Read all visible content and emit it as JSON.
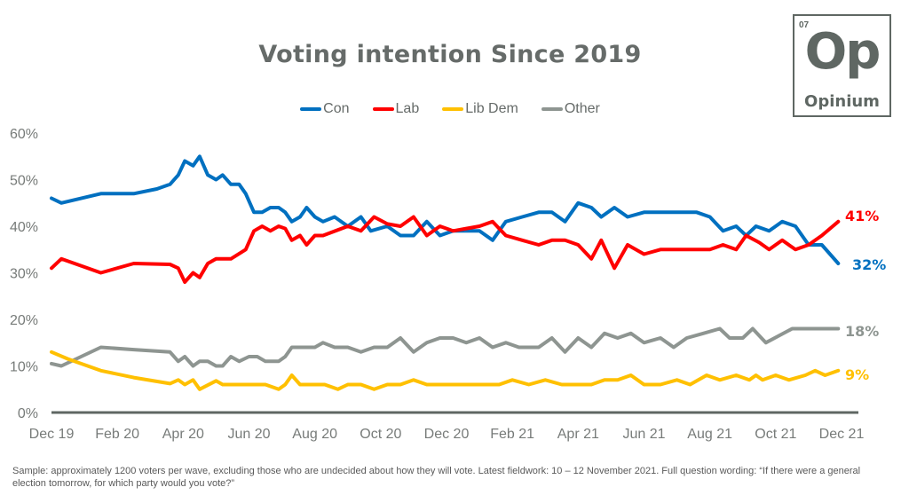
{
  "logo": {
    "number": "07",
    "symbol": "Op",
    "name": "Opinium"
  },
  "footnote": "Sample: approximately 1200 voters per wave, excluding those who are undecided about how they will vote. Latest fieldwork: 10 – 12 November 2021. Full question wording: “If there were a general election tomorrow, for which party would you vote?”",
  "chart_data": {
    "type": "line",
    "title": "Voting intention Since 2019",
    "xlabel": "",
    "ylabel": "",
    "ylim": [
      0,
      60
    ],
    "xlim": [
      0,
      24
    ],
    "x_unit": "months since Dec 2019",
    "yticks": [
      "0%",
      "10%",
      "20%",
      "30%",
      "40%",
      "50%",
      "60%"
    ],
    "ytick_values": [
      0,
      10,
      20,
      30,
      40,
      50,
      60
    ],
    "xticks": [
      "Dec 19",
      "Feb 20",
      "Apr 20",
      "Jun 20",
      "Aug 20",
      "Oct 20",
      "Dec 20",
      "Feb 21",
      "Apr 21",
      "Jun 21",
      "Aug 21",
      "Oct 21",
      "Dec 21"
    ],
    "xtick_values": [
      0,
      2,
      4,
      6,
      8,
      10,
      12,
      14,
      16,
      18,
      20,
      22,
      24
    ],
    "grid": false,
    "legend_position": "top-center",
    "series": [
      {
        "name": "Con",
        "color": "#0070c0",
        "end_label": "32%",
        "points": [
          [
            0,
            46
          ],
          [
            0.3,
            45
          ],
          [
            1.5,
            47
          ],
          [
            2.5,
            47
          ],
          [
            3.2,
            48
          ],
          [
            3.6,
            49
          ],
          [
            3.85,
            51
          ],
          [
            4.05,
            54
          ],
          [
            4.3,
            53
          ],
          [
            4.5,
            55
          ],
          [
            4.75,
            51
          ],
          [
            5.0,
            50
          ],
          [
            5.2,
            51
          ],
          [
            5.45,
            49
          ],
          [
            5.7,
            49
          ],
          [
            5.9,
            47
          ],
          [
            6.15,
            43
          ],
          [
            6.4,
            43
          ],
          [
            6.65,
            44
          ],
          [
            6.9,
            44
          ],
          [
            7.1,
            43
          ],
          [
            7.3,
            41
          ],
          [
            7.55,
            42
          ],
          [
            7.75,
            44
          ],
          [
            8.0,
            42
          ],
          [
            8.25,
            41
          ],
          [
            8.6,
            42
          ],
          [
            9.0,
            40
          ],
          [
            9.4,
            42
          ],
          [
            9.7,
            39
          ],
          [
            10.2,
            40
          ],
          [
            10.6,
            38
          ],
          [
            11.0,
            38
          ],
          [
            11.4,
            41
          ],
          [
            11.8,
            38
          ],
          [
            12.2,
            39
          ],
          [
            12.6,
            39
          ],
          [
            13.0,
            39
          ],
          [
            13.4,
            37
          ],
          [
            13.8,
            41
          ],
          [
            14.3,
            42
          ],
          [
            14.8,
            43
          ],
          [
            15.2,
            43
          ],
          [
            15.6,
            41
          ],
          [
            16.0,
            45
          ],
          [
            16.4,
            44
          ],
          [
            16.7,
            42
          ],
          [
            17.1,
            44
          ],
          [
            17.5,
            42
          ],
          [
            18.0,
            43
          ],
          [
            18.5,
            43
          ],
          [
            19.0,
            43
          ],
          [
            19.6,
            43
          ],
          [
            20.0,
            42
          ],
          [
            20.4,
            39
          ],
          [
            20.8,
            40
          ],
          [
            21.1,
            38
          ],
          [
            21.4,
            40
          ],
          [
            21.8,
            39
          ],
          [
            22.2,
            41
          ],
          [
            22.6,
            40
          ],
          [
            23.0,
            36
          ],
          [
            23.4,
            36
          ],
          [
            23.9,
            32
          ]
        ]
      },
      {
        "name": "Lab",
        "color": "#ff0000",
        "end_label": "41%",
        "points": [
          [
            0,
            31
          ],
          [
            0.3,
            33
          ],
          [
            1.5,
            30
          ],
          [
            2.5,
            32
          ],
          [
            3.6,
            31.8
          ],
          [
            3.85,
            31
          ],
          [
            4.05,
            28
          ],
          [
            4.3,
            30
          ],
          [
            4.5,
            29
          ],
          [
            4.75,
            32
          ],
          [
            5.0,
            33
          ],
          [
            5.45,
            33
          ],
          [
            5.9,
            35
          ],
          [
            6.15,
            39
          ],
          [
            6.4,
            40
          ],
          [
            6.65,
            39
          ],
          [
            6.9,
            40
          ],
          [
            7.1,
            39.5
          ],
          [
            7.3,
            37
          ],
          [
            7.55,
            38
          ],
          [
            7.75,
            36
          ],
          [
            8.0,
            38
          ],
          [
            8.25,
            38
          ],
          [
            9.0,
            40
          ],
          [
            9.4,
            39
          ],
          [
            9.8,
            42
          ],
          [
            10.2,
            40.5
          ],
          [
            10.6,
            40
          ],
          [
            11.0,
            42
          ],
          [
            11.4,
            38
          ],
          [
            11.8,
            40
          ],
          [
            12.2,
            39
          ],
          [
            12.6,
            39.5
          ],
          [
            13.0,
            40
          ],
          [
            13.4,
            41
          ],
          [
            13.8,
            38
          ],
          [
            14.3,
            37
          ],
          [
            14.8,
            36
          ],
          [
            15.2,
            37
          ],
          [
            15.6,
            37
          ],
          [
            16.0,
            36
          ],
          [
            16.4,
            33
          ],
          [
            16.7,
            37
          ],
          [
            17.1,
            31
          ],
          [
            17.5,
            36
          ],
          [
            18.0,
            34
          ],
          [
            18.5,
            35
          ],
          [
            19.6,
            35
          ],
          [
            20.0,
            35
          ],
          [
            20.4,
            36
          ],
          [
            20.8,
            35
          ],
          [
            21.1,
            38
          ],
          [
            21.5,
            36.5
          ],
          [
            21.8,
            35
          ],
          [
            22.2,
            37
          ],
          [
            22.6,
            35
          ],
          [
            23.0,
            36
          ],
          [
            23.4,
            38
          ],
          [
            23.9,
            41
          ]
        ]
      },
      {
        "name": "Lib Dem",
        "color": "#ffc000",
        "end_label": "9%",
        "points": [
          [
            0,
            13
          ],
          [
            0.5,
            11.5
          ],
          [
            1.5,
            9
          ],
          [
            2.5,
            7.5
          ],
          [
            3.6,
            6.2
          ],
          [
            3.85,
            7
          ],
          [
            4.05,
            6
          ],
          [
            4.3,
            7
          ],
          [
            4.5,
            5
          ],
          [
            5.0,
            6.8
          ],
          [
            5.2,
            6
          ],
          [
            6.0,
            6
          ],
          [
            6.5,
            6
          ],
          [
            6.9,
            5
          ],
          [
            7.1,
            6
          ],
          [
            7.3,
            8
          ],
          [
            7.55,
            6
          ],
          [
            8.0,
            6
          ],
          [
            8.3,
            6
          ],
          [
            8.7,
            5
          ],
          [
            9.0,
            6
          ],
          [
            9.4,
            6
          ],
          [
            9.8,
            5
          ],
          [
            10.2,
            6
          ],
          [
            10.6,
            6
          ],
          [
            11.0,
            7
          ],
          [
            11.4,
            6
          ],
          [
            12.0,
            6
          ],
          [
            12.8,
            6
          ],
          [
            13.2,
            6
          ],
          [
            13.6,
            6
          ],
          [
            14.0,
            7
          ],
          [
            14.5,
            6
          ],
          [
            15.0,
            7
          ],
          [
            15.5,
            6
          ],
          [
            16.0,
            6
          ],
          [
            16.4,
            6
          ],
          [
            16.8,
            7
          ],
          [
            17.2,
            7
          ],
          [
            17.6,
            8
          ],
          [
            18.0,
            6
          ],
          [
            18.5,
            6
          ],
          [
            19.0,
            7
          ],
          [
            19.4,
            6
          ],
          [
            19.9,
            8
          ],
          [
            20.3,
            7
          ],
          [
            20.8,
            8
          ],
          [
            21.2,
            7
          ],
          [
            21.4,
            8
          ],
          [
            21.6,
            7
          ],
          [
            22.0,
            8
          ],
          [
            22.4,
            7
          ],
          [
            22.9,
            8
          ],
          [
            23.2,
            9
          ],
          [
            23.5,
            8
          ],
          [
            23.9,
            9
          ]
        ]
      },
      {
        "name": "Other",
        "color": "#8e9591",
        "end_label": "18%",
        "points": [
          [
            0,
            10.5
          ],
          [
            0.3,
            10
          ],
          [
            1.5,
            14
          ],
          [
            2.5,
            13.5
          ],
          [
            3.6,
            13
          ],
          [
            3.85,
            11
          ],
          [
            4.05,
            12
          ],
          [
            4.3,
            10
          ],
          [
            4.5,
            11
          ],
          [
            4.75,
            11
          ],
          [
            5.0,
            10
          ],
          [
            5.2,
            10
          ],
          [
            5.45,
            12
          ],
          [
            5.7,
            11
          ],
          [
            6.0,
            12
          ],
          [
            6.25,
            12
          ],
          [
            6.5,
            11
          ],
          [
            6.9,
            11
          ],
          [
            7.1,
            12
          ],
          [
            7.3,
            14
          ],
          [
            7.8,
            14
          ],
          [
            8.0,
            14
          ],
          [
            8.25,
            15
          ],
          [
            8.6,
            14
          ],
          [
            9.0,
            14
          ],
          [
            9.4,
            13
          ],
          [
            9.8,
            14
          ],
          [
            10.2,
            14
          ],
          [
            10.6,
            16
          ],
          [
            11.0,
            13
          ],
          [
            11.4,
            15
          ],
          [
            11.8,
            16
          ],
          [
            12.2,
            16
          ],
          [
            12.6,
            15
          ],
          [
            13.0,
            16
          ],
          [
            13.4,
            14
          ],
          [
            13.8,
            15
          ],
          [
            14.2,
            14
          ],
          [
            14.8,
            14
          ],
          [
            15.2,
            16
          ],
          [
            15.6,
            13
          ],
          [
            16.0,
            16
          ],
          [
            16.4,
            14
          ],
          [
            16.8,
            17
          ],
          [
            17.2,
            16
          ],
          [
            17.6,
            17
          ],
          [
            18.0,
            15
          ],
          [
            18.5,
            16
          ],
          [
            18.9,
            14
          ],
          [
            19.3,
            16
          ],
          [
            19.8,
            17
          ],
          [
            20.3,
            18
          ],
          [
            20.6,
            16
          ],
          [
            21.0,
            16
          ],
          [
            21.3,
            18
          ],
          [
            21.7,
            15
          ],
          [
            22.5,
            18
          ],
          [
            23.0,
            18
          ],
          [
            23.9,
            18
          ]
        ]
      }
    ]
  }
}
